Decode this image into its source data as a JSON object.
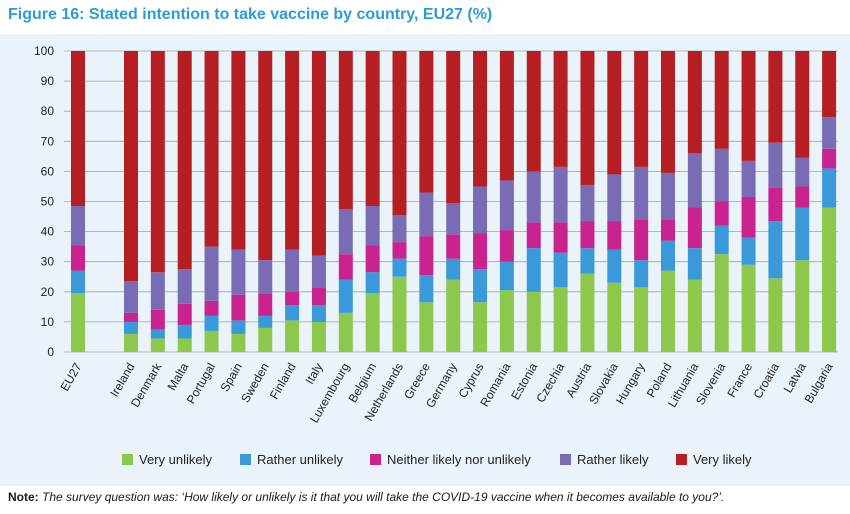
{
  "title": "Figure 16: Stated intention to take vaccine by country, EU27 (%)",
  "note": {
    "label": "Note:",
    "text": "The survey question was: ‘How likely or unlikely is it that you will take the COVID-19 vaccine when it becomes available to you?’."
  },
  "colors": {
    "very_unlikely": "#8cc84b",
    "rather_unlikely": "#3a9ad9",
    "neither": "#c8238f",
    "rather_likely": "#7a6bb5",
    "very_likely": "#b51f24",
    "plot_background": "#eaf3fa",
    "title": "#2e9bd6"
  },
  "chart_data": {
    "type": "bar",
    "stacked": true,
    "categories": [
      "EU27",
      "Ireland",
      "Denmark",
      "Malta",
      "Portugal",
      "Spain",
      "Sweden",
      "Finland",
      "Italy",
      "Luxembourg",
      "Belgium",
      "Netherlands",
      "Greece",
      "Germany",
      "Cyprus",
      "Romania",
      "Estonia",
      "Czechia",
      "Austria",
      "Slovakia",
      "Hungary",
      "Poland",
      "Lithuania",
      "Slovenia",
      "France",
      "Croatia",
      "Latvia",
      "Bulgaria"
    ],
    "series": [
      {
        "name": "Very unlikely",
        "color": "#8cc84b",
        "values": [
          19.5,
          6,
          4.5,
          4.5,
          7,
          6,
          8,
          10.5,
          10,
          13,
          19.5,
          25,
          16.5,
          24,
          16.5,
          20.5,
          20,
          21.5,
          26,
          23,
          21.5,
          27,
          24,
          32.5,
          29,
          24.5,
          30.5,
          48
        ]
      },
      {
        "name": "Rather unlikely",
        "color": "#3a9ad9",
        "values": [
          7.5,
          4,
          3,
          4.5,
          5,
          4.5,
          4,
          5,
          5.5,
          11,
          7,
          6,
          9,
          7,
          11,
          9.5,
          14.5,
          11.5,
          8.5,
          11,
          9,
          10,
          10.5,
          9.5,
          9,
          19,
          17.5,
          13
        ]
      },
      {
        "name": "Neither likely nor unlikely",
        "color": "#c8238f",
        "values": [
          8.5,
          3,
          6.5,
          7,
          5,
          8.5,
          7.5,
          4.5,
          6,
          8.5,
          9,
          5.5,
          13,
          8,
          12,
          10.5,
          8.5,
          10,
          9,
          9.5,
          13.5,
          7,
          13.5,
          8,
          13.5,
          11,
          7,
          6.5
        ]
      },
      {
        "name": "Rather likely",
        "color": "#7a6bb5",
        "values": [
          13,
          10.5,
          12.5,
          11.5,
          18,
          15,
          11,
          14,
          10.5,
          15,
          13,
          9,
          14.5,
          10.5,
          15.5,
          16.5,
          17,
          18.5,
          12,
          15.5,
          17.5,
          15.5,
          18,
          17.5,
          12,
          15,
          9.5,
          10.5
        ]
      },
      {
        "name": "Very likely",
        "color": "#b51f24",
        "values": [
          51.5,
          76.5,
          73.5,
          72.5,
          65,
          66,
          69.5,
          66,
          68,
          52.5,
          51.5,
          54.5,
          47,
          50.5,
          45,
          43,
          40,
          38.5,
          44.5,
          41,
          38.5,
          40.5,
          34,
          32.5,
          36.5,
          30.5,
          35.5,
          22
        ]
      }
    ],
    "gap_after_index": 0,
    "ylim": [
      0,
      100
    ],
    "yticks": [
      "0",
      "10",
      "20",
      "30",
      "40",
      "50",
      "60",
      "70",
      "80",
      "90",
      "100"
    ],
    "grid": true,
    "legend_position": "bottom",
    "xlabel": "",
    "ylabel": ""
  }
}
